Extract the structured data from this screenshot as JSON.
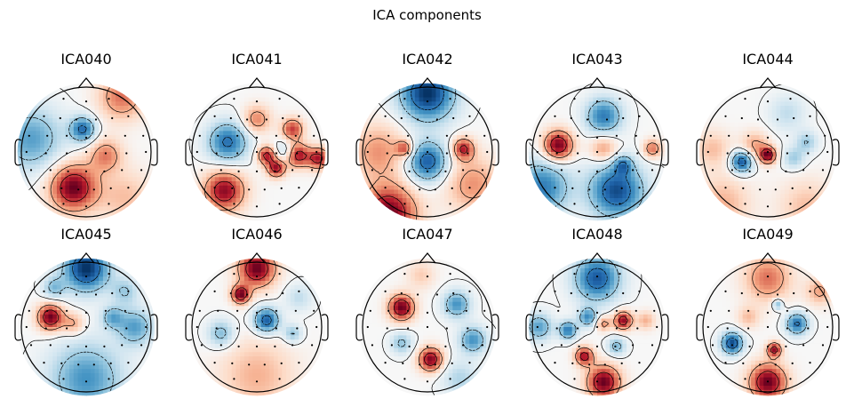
{
  "figure": {
    "title": "ICA components"
  },
  "chart_data": {
    "type": "heatmap",
    "title": "ICA components",
    "colormap": [
      "#67001f",
      "#b2182b",
      "#d6604d",
      "#f4a582",
      "#fddbc7",
      "#f7f7f7",
      "#d1e5f0",
      "#92c5de",
      "#4393c3",
      "#2166ac",
      "#053061"
    ],
    "components": [
      {
        "name": "ICA040",
        "blobs": [
          {
            "x": -0.2,
            "y": -0.55,
            "a": -1.0,
            "s": 0.25
          },
          {
            "x": -0.05,
            "y": 0.35,
            "a": 0.75,
            "s": 0.14
          },
          {
            "x": 0.3,
            "y": -0.05,
            "a": -0.5,
            "s": 0.18
          },
          {
            "x": -0.85,
            "y": 0.2,
            "a": 0.55,
            "s": 0.35
          },
          {
            "x": 0.55,
            "y": 0.85,
            "a": -0.55,
            "s": 0.25
          },
          {
            "x": 0.6,
            "y": -0.7,
            "a": -0.3,
            "s": 0.3
          }
        ]
      },
      {
        "name": "ICA041",
        "blobs": [
          {
            "x": -0.5,
            "y": -0.6,
            "a": -0.9,
            "s": 0.22
          },
          {
            "x": -0.45,
            "y": 0.15,
            "a": 0.75,
            "s": 0.22
          },
          {
            "x": 0.45,
            "y": 0.0,
            "a": 0.4,
            "s": 0.12
          },
          {
            "x": 0.3,
            "y": -0.25,
            "a": -0.85,
            "s": 0.1
          },
          {
            "x": 0.62,
            "y": -0.05,
            "a": -0.9,
            "s": 0.13
          },
          {
            "x": 0.15,
            "y": -0.05,
            "a": -0.8,
            "s": 0.1
          },
          {
            "x": 0.55,
            "y": 0.35,
            "a": -0.7,
            "s": 0.12
          },
          {
            "x": 0.0,
            "y": 0.5,
            "a": -0.5,
            "s": 0.15
          },
          {
            "x": 0.95,
            "y": -0.1,
            "a": -0.8,
            "s": 0.12
          }
        ]
      },
      {
        "name": "ICA042",
        "blobs": [
          {
            "x": 0.0,
            "y": 0.9,
            "a": 1.0,
            "s": 0.3
          },
          {
            "x": 0.0,
            "y": -0.15,
            "a": 0.85,
            "s": 0.22
          },
          {
            "x": -0.6,
            "y": -0.95,
            "a": -1.0,
            "s": 0.3
          },
          {
            "x": 0.55,
            "y": 0.05,
            "a": -0.75,
            "s": 0.12
          },
          {
            "x": -0.35,
            "y": 0.05,
            "a": -0.6,
            "s": 0.09
          },
          {
            "x": -0.75,
            "y": 0.0,
            "a": -0.45,
            "s": 0.3
          },
          {
            "x": 0.7,
            "y": -0.5,
            "a": -0.45,
            "s": 0.3
          }
        ]
      },
      {
        "name": "ICA043",
        "blobs": [
          {
            "x": -0.6,
            "y": 0.1,
            "a": -1.0,
            "s": 0.16
          },
          {
            "x": 0.3,
            "y": -0.6,
            "a": 0.9,
            "s": 0.3
          },
          {
            "x": 0.1,
            "y": 0.55,
            "a": 0.7,
            "s": 0.2
          },
          {
            "x": 0.85,
            "y": 0.05,
            "a": -0.55,
            "s": 0.1
          },
          {
            "x": 0.1,
            "y": 0.05,
            "a": -0.45,
            "s": 0.15
          },
          {
            "x": -0.85,
            "y": -0.55,
            "a": 0.7,
            "s": 0.3
          },
          {
            "x": 0.4,
            "y": -0.2,
            "a": 0.5,
            "s": 0.1
          }
        ]
      },
      {
        "name": "ICA044",
        "blobs": [
          {
            "x": -0.4,
            "y": -0.15,
            "a": 0.9,
            "s": 0.12
          },
          {
            "x": 0.0,
            "y": -0.05,
            "a": -0.95,
            "s": 0.09
          },
          {
            "x": -0.2,
            "y": 0.1,
            "a": -0.4,
            "s": 0.15
          },
          {
            "x": 0.4,
            "y": -0.1,
            "a": 0.35,
            "s": 0.12
          },
          {
            "x": 0.6,
            "y": 0.15,
            "a": 0.35,
            "s": 0.12
          },
          {
            "x": -0.7,
            "y": -0.8,
            "a": -0.35,
            "s": 0.3
          },
          {
            "x": 0.6,
            "y": -0.85,
            "a": -0.3,
            "s": 0.3
          },
          {
            "x": 0.3,
            "y": 0.6,
            "a": 0.25,
            "s": 0.2
          },
          {
            "x": -0.85,
            "y": 0.05,
            "a": -0.3,
            "s": 0.2
          }
        ]
      },
      {
        "name": "ICA045",
        "blobs": [
          {
            "x": -0.55,
            "y": 0.15,
            "a": -1.0,
            "s": 0.14
          },
          {
            "x": -0.2,
            "y": 0.05,
            "a": -0.4,
            "s": 0.12
          },
          {
            "x": 0.0,
            "y": 0.9,
            "a": 1.0,
            "s": 0.25
          },
          {
            "x": 0.0,
            "y": -0.8,
            "a": 0.6,
            "s": 0.4
          },
          {
            "x": 0.75,
            "y": 0.0,
            "a": 0.55,
            "s": 0.2
          },
          {
            "x": 0.4,
            "y": 0.15,
            "a": 0.45,
            "s": 0.12
          },
          {
            "x": -0.5,
            "y": 0.6,
            "a": 0.4,
            "s": 0.12
          },
          {
            "x": 0.6,
            "y": 0.55,
            "a": 0.35,
            "s": 0.15
          }
        ]
      },
      {
        "name": "ICA046",
        "blobs": [
          {
            "x": 0.0,
            "y": 0.9,
            "a": -1.0,
            "s": 0.2
          },
          {
            "x": -0.25,
            "y": 0.5,
            "a": -0.95,
            "s": 0.1
          },
          {
            "x": 0.15,
            "y": 0.1,
            "a": 0.85,
            "s": 0.14
          },
          {
            "x": 0.55,
            "y": -0.1,
            "a": 0.4,
            "s": 0.1
          },
          {
            "x": -0.55,
            "y": -0.1,
            "a": 0.45,
            "s": 0.15
          },
          {
            "x": 0.0,
            "y": -0.75,
            "a": -0.35,
            "s": 0.4
          },
          {
            "x": 0.65,
            "y": 0.45,
            "a": 0.25,
            "s": 0.15
          }
        ]
      },
      {
        "name": "ICA047",
        "blobs": [
          {
            "x": -0.4,
            "y": 0.3,
            "a": -1.0,
            "s": 0.14
          },
          {
            "x": 0.05,
            "y": -0.5,
            "a": -0.95,
            "s": 0.13
          },
          {
            "x": 0.45,
            "y": 0.35,
            "a": 0.6,
            "s": 0.15
          },
          {
            "x": 0.7,
            "y": -0.2,
            "a": 0.6,
            "s": 0.15
          },
          {
            "x": -0.4,
            "y": -0.25,
            "a": 0.4,
            "s": 0.12
          },
          {
            "x": -0.1,
            "y": 0.8,
            "a": -0.25,
            "s": 0.15
          },
          {
            "x": 0.5,
            "y": -0.8,
            "a": 0.3,
            "s": 0.2
          }
        ]
      },
      {
        "name": "ICA048",
        "blobs": [
          {
            "x": 0.1,
            "y": -0.85,
            "a": -1.0,
            "s": 0.18
          },
          {
            "x": -0.2,
            "y": -0.45,
            "a": -0.85,
            "s": 0.1
          },
          {
            "x": 0.0,
            "y": 0.75,
            "a": 0.85,
            "s": 0.25
          },
          {
            "x": 0.4,
            "y": 0.1,
            "a": -0.9,
            "s": 0.1
          },
          {
            "x": -0.45,
            "y": -0.05,
            "a": 0.7,
            "s": 0.1
          },
          {
            "x": -0.15,
            "y": 0.15,
            "a": 0.6,
            "s": 0.1
          },
          {
            "x": 0.1,
            "y": 0.05,
            "a": -0.45,
            "s": 0.08
          },
          {
            "x": 0.75,
            "y": 0.1,
            "a": -0.35,
            "s": 0.1
          },
          {
            "x": -0.9,
            "y": 0.0,
            "a": 0.55,
            "s": 0.15
          },
          {
            "x": 0.3,
            "y": -0.3,
            "a": 0.45,
            "s": 0.1
          }
        ]
      },
      {
        "name": "ICA049",
        "blobs": [
          {
            "x": 0.0,
            "y": -0.85,
            "a": -1.0,
            "s": 0.2
          },
          {
            "x": 0.1,
            "y": -0.35,
            "a": -0.85,
            "s": 0.08
          },
          {
            "x": -0.55,
            "y": -0.25,
            "a": 0.9,
            "s": 0.12
          },
          {
            "x": 0.45,
            "y": 0.05,
            "a": 0.75,
            "s": 0.12
          },
          {
            "x": 0.0,
            "y": 0.75,
            "a": -0.55,
            "s": 0.25
          },
          {
            "x": -0.3,
            "y": 0.15,
            "a": -0.3,
            "s": 0.12
          },
          {
            "x": 0.8,
            "y": 0.55,
            "a": -0.4,
            "s": 0.15
          },
          {
            "x": 0.15,
            "y": 0.35,
            "a": 0.5,
            "s": 0.06
          }
        ]
      }
    ]
  }
}
